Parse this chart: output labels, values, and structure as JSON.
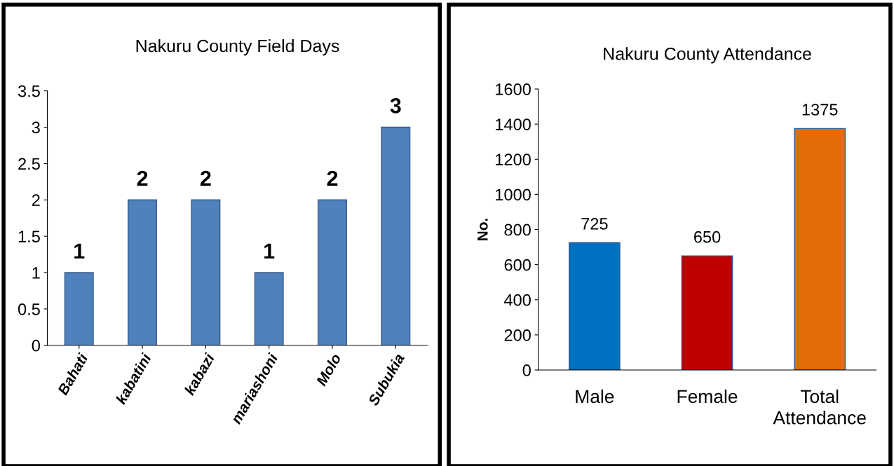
{
  "chart_data": [
    {
      "type": "bar",
      "title": "Nakuru County Field Days",
      "categories": [
        "Bahati",
        "kabatini",
        "kabazi",
        "mariashoni",
        "Molo",
        "Subukia"
      ],
      "values": [
        1,
        2,
        2,
        1,
        2,
        3
      ],
      "color": "#4f81bd",
      "ylim": [
        0,
        3.5
      ],
      "yticks": [
        0,
        0.5,
        1,
        1.5,
        2,
        2.5,
        3,
        3.5
      ],
      "data_labels": true,
      "grid": false,
      "legend": false
    },
    {
      "type": "bar",
      "title": "Nakuru County Attendance",
      "ylabel": "No.",
      "categories": [
        "Male",
        "Female",
        "Total\nAttendance"
      ],
      "values": [
        725,
        650,
        1375
      ],
      "colors": [
        "#0070c0",
        "#c00000",
        "#e36c09"
      ],
      "ylim": [
        0,
        1600
      ],
      "yticks": [
        0,
        200,
        400,
        600,
        800,
        1000,
        1200,
        1400,
        1600
      ],
      "data_labels": true,
      "grid": false,
      "legend": false
    }
  ]
}
